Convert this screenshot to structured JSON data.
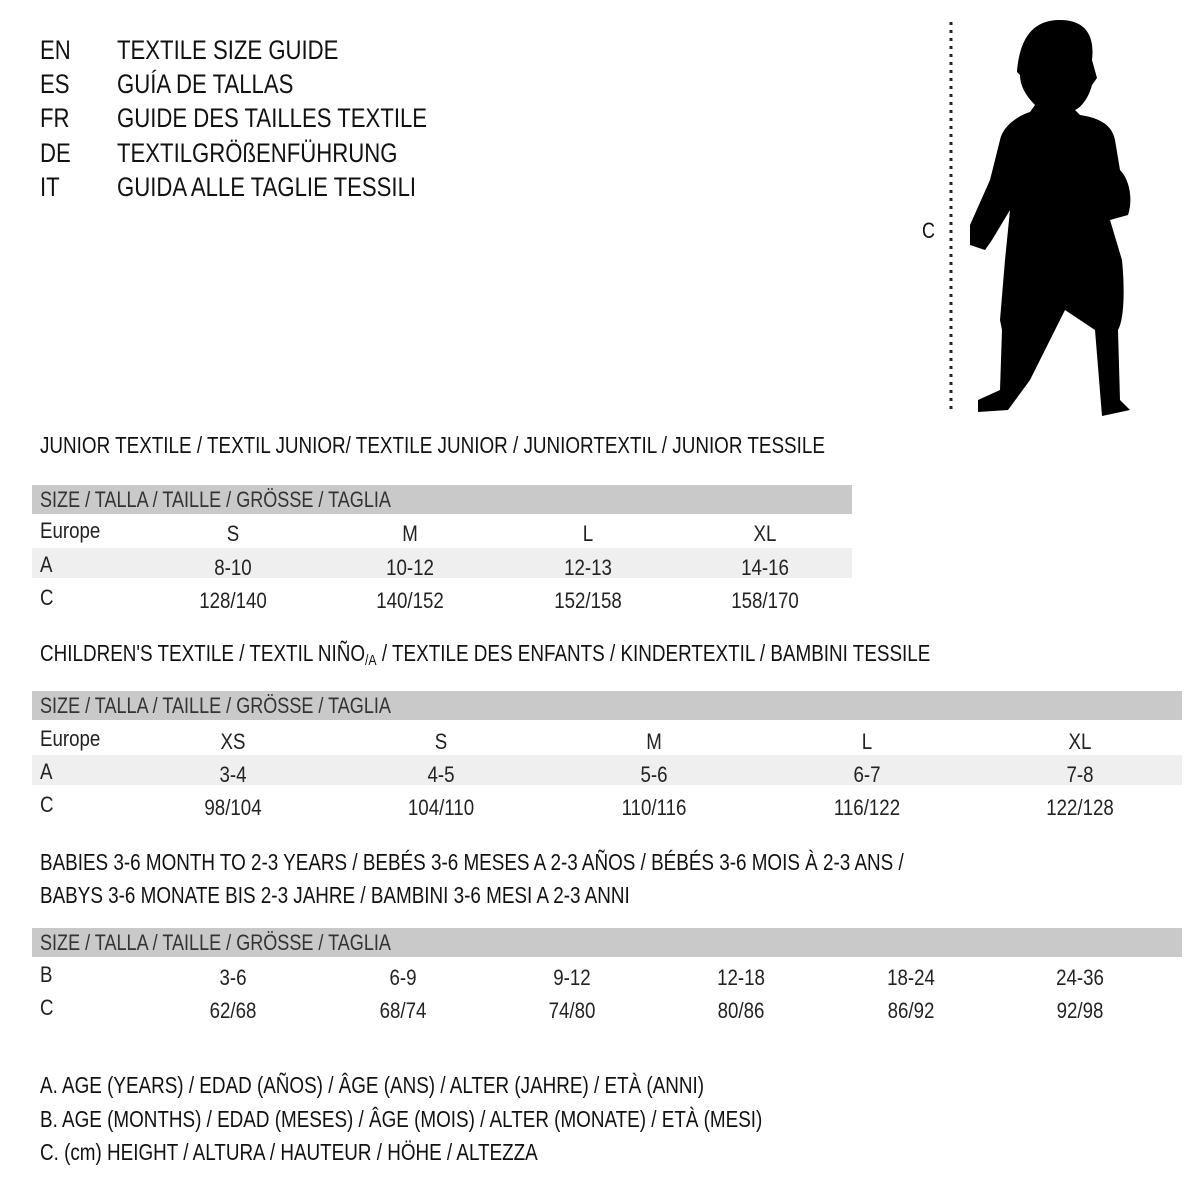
{
  "languages": [
    {
      "code": "EN",
      "text": "TEXTILE SIZE GUIDE"
    },
    {
      "code": "ES",
      "text": "GUÍA DE TALLAS"
    },
    {
      "code": "FR",
      "text": "GUIDE DES TAILLES TEXTILE"
    },
    {
      "code": "DE",
      "text": "TEXTILGRÖßENFÜHRUNG"
    },
    {
      "code": "IT",
      "text": "GUIDA ALLE TAGLIE TESSILI"
    }
  ],
  "figure": {
    "height_label": "C",
    "icon": "child-silhouette-icon"
  },
  "colors": {
    "header_bar": "#c9c9c9",
    "alt_row": "#efefef",
    "text": "#111111"
  },
  "size_header": "SIZE / TALLA / TAILLE / GRÖSSE / TAGLIA",
  "junior": {
    "title": "JUNIOR TEXTILE / TEXTIL JUNIOR/ TEXTILE JUNIOR / JUNIORTEXTIL / JUNIOR TESSILE",
    "rows": [
      {
        "label": "Europe",
        "values": [
          "S",
          "M",
          "L",
          "XL"
        ]
      },
      {
        "label": "A",
        "values": [
          "8-10",
          "10-12",
          "12-13",
          "14-16"
        ]
      },
      {
        "label": "C",
        "values": [
          "128/140",
          "140/152",
          "152/158",
          "158/170"
        ]
      }
    ]
  },
  "children": {
    "title_a": "CHILDREN'S TEXTILE / TEXTIL NIÑO",
    "title_sub": "/A",
    "title_b": " / TEXTILE DES ENFANTS / KINDERTEXTIL / BAMBINI TESSILE",
    "rows": [
      {
        "label": "Europe",
        "values": [
          "XS",
          "S",
          "M",
          "L",
          "XL"
        ]
      },
      {
        "label": "A",
        "values": [
          "3-4",
          "4-5",
          "5-6",
          "6-7",
          "7-8"
        ]
      },
      {
        "label": "C",
        "values": [
          "98/104",
          "104/110",
          "110/116",
          "116/122",
          "122/128"
        ]
      }
    ]
  },
  "babies": {
    "title_line1": "BABIES 3-6 MONTH TO 2-3 YEARS / BEBÉS 3-6 MESES A 2-3 AÑOS / BÉBÉS 3-6 MOIS À 2-3 ANS /",
    "title_line2": "BABYS 3-6 MONATE BIS 2-3 JAHRE / BAMBINI 3-6 MESI A 2-3 ANNI",
    "rows": [
      {
        "label": "B",
        "values": [
          "3-6",
          "6-9",
          "9-12",
          "12-18",
          "18-24",
          "24-36"
        ]
      },
      {
        "label": "C",
        "values": [
          "62/68",
          "68/74",
          "74/80",
          "80/86",
          "86/92",
          "92/98"
        ]
      }
    ]
  },
  "legend": [
    "A. AGE (YEARS) / EDAD (AÑOS) / ÂGE (ANS) / ALTER (JAHRE) / ETÀ (ANNI)",
    "B. AGE (MONTHS) / EDAD (MESES) / ÂGE (MOIS) / ALTER (MONATE) / ETÀ (MESI)",
    "C. (cm) HEIGHT / ALTURA / HAUTEUR / HÖHE / ALTEZZA"
  ]
}
